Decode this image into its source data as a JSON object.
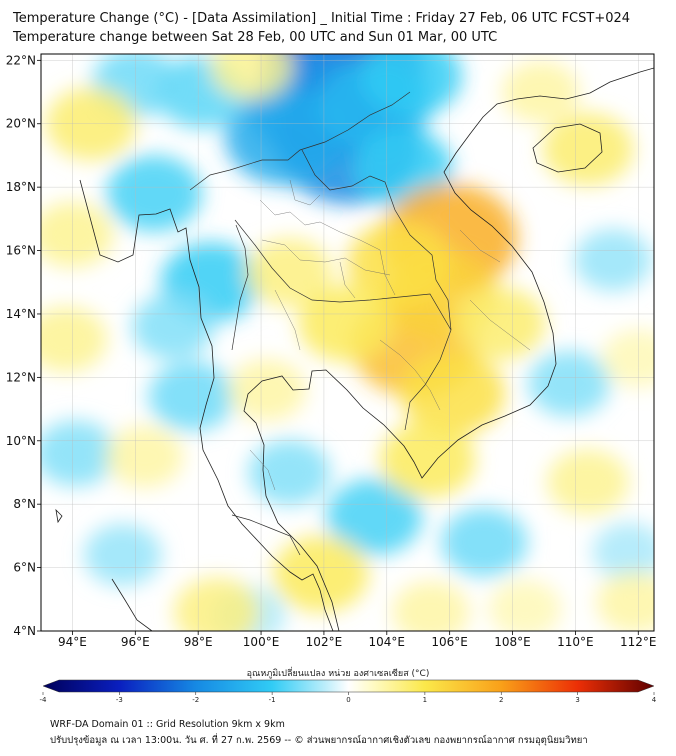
{
  "title": {
    "line1": "Temperature Change (°C) - [Data Assimilation] _ Initial Time : Friday 27 Feb, 06 UTC FCST+024",
    "line2": "Temperature change between Sat 28 Feb, 00 UTC and Sun 01 Mar, 00 UTC"
  },
  "map": {
    "lon_range": [
      93,
      112.5
    ],
    "lat_range": [
      4,
      22.2
    ],
    "x_ticks": [
      {
        "value": 94,
        "label": "94°E"
      },
      {
        "value": 96,
        "label": "96°E"
      },
      {
        "value": 98,
        "label": "98°E"
      },
      {
        "value": 100,
        "label": "100°E"
      },
      {
        "value": 102,
        "label": "102°E"
      },
      {
        "value": 104,
        "label": "104°E"
      },
      {
        "value": 106,
        "label": "106°E"
      },
      {
        "value": 108,
        "label": "108°E"
      },
      {
        "value": 110,
        "label": "110°E"
      },
      {
        "value": 112,
        "label": "112°E"
      }
    ],
    "y_ticks": [
      {
        "value": 22,
        "label": "22°N"
      },
      {
        "value": 20,
        "label": "20°N"
      },
      {
        "value": 18,
        "label": "18°N"
      },
      {
        "value": 16,
        "label": "16°N"
      },
      {
        "value": 14,
        "label": "14°N"
      },
      {
        "value": 12,
        "label": "12°N"
      },
      {
        "value": 10,
        "label": "10°N"
      },
      {
        "value": 8,
        "label": "8°N"
      },
      {
        "value": 6,
        "label": "6°N"
      },
      {
        "value": 4,
        "label": "4°N"
      }
    ],
    "field": [
      {
        "lon": 102.6,
        "lat": 21.7,
        "value": -2.4
      },
      {
        "lon": 101.8,
        "lat": 20.5,
        "value": -1.8
      },
      {
        "lon": 102.8,
        "lat": 19.3,
        "value": -2.0
      },
      {
        "lon": 100.8,
        "lat": 19.6,
        "value": -1.5
      },
      {
        "lon": 103.6,
        "lat": 20.6,
        "value": -1.3
      },
      {
        "lon": 104.8,
        "lat": 21.5,
        "value": -1.0
      },
      {
        "lon": 104.5,
        "lat": 18.6,
        "value": -1.0
      },
      {
        "lon": 98.4,
        "lat": 15.0,
        "value": -1.0
      },
      {
        "lon": 96.6,
        "lat": 17.8,
        "value": -0.9
      },
      {
        "lon": 98.1,
        "lat": 21.0,
        "value": -0.8
      },
      {
        "lon": 96.0,
        "lat": 21.3,
        "value": -0.7
      },
      {
        "lon": 97.8,
        "lat": 11.4,
        "value": -0.7
      },
      {
        "lon": 97.2,
        "lat": 13.6,
        "value": -0.6
      },
      {
        "lon": 100.9,
        "lat": 9.0,
        "value": -0.6
      },
      {
        "lon": 103.6,
        "lat": 7.6,
        "value": -0.9
      },
      {
        "lon": 107.1,
        "lat": 6.8,
        "value": -0.7
      },
      {
        "lon": 109.8,
        "lat": 11.8,
        "value": -0.6
      },
      {
        "lon": 111.2,
        "lat": 15.7,
        "value": -0.5
      },
      {
        "lon": 94.1,
        "lat": 9.6,
        "value": -0.6
      },
      {
        "lon": 95.6,
        "lat": 6.4,
        "value": -0.5
      },
      {
        "lon": 99.6,
        "lat": 4.5,
        "value": -0.4
      },
      {
        "lon": 111.7,
        "lat": 6.5,
        "value": -0.4
      },
      {
        "lon": 104.9,
        "lat": 13.0,
        "value": 1.6
      },
      {
        "lon": 106.0,
        "lat": 16.4,
        "value": 1.8
      },
      {
        "lon": 105.7,
        "lat": 14.6,
        "value": 1.3
      },
      {
        "lon": 104.4,
        "lat": 15.6,
        "value": 1.1
      },
      {
        "lon": 106.1,
        "lat": 11.5,
        "value": 1.1
      },
      {
        "lon": 100.9,
        "lat": 15.3,
        "value": 0.7
      },
      {
        "lon": 105.3,
        "lat": 9.4,
        "value": 0.9
      },
      {
        "lon": 107.6,
        "lat": 13.7,
        "value": 0.8
      },
      {
        "lon": 102.7,
        "lat": 13.7,
        "value": 0.9
      },
      {
        "lon": 100.2,
        "lat": 11.6,
        "value": 0.5
      },
      {
        "lon": 94.6,
        "lat": 20.0,
        "value": 0.8
      },
      {
        "lon": 94.0,
        "lat": 16.5,
        "value": 0.6
      },
      {
        "lon": 110.4,
        "lat": 19.2,
        "value": 0.8
      },
      {
        "lon": 108.9,
        "lat": 21.0,
        "value": 0.5
      },
      {
        "lon": 99.7,
        "lat": 21.8,
        "value": 0.6
      },
      {
        "lon": 93.8,
        "lat": 13.2,
        "value": 0.6
      },
      {
        "lon": 96.3,
        "lat": 9.5,
        "value": 0.5
      },
      {
        "lon": 101.9,
        "lat": 5.8,
        "value": 0.9
      },
      {
        "lon": 98.6,
        "lat": 4.6,
        "value": 0.7
      },
      {
        "lon": 110.4,
        "lat": 8.7,
        "value": 0.6
      },
      {
        "lon": 111.9,
        "lat": 4.9,
        "value": 0.5
      },
      {
        "lon": 108.4,
        "lat": 4.7,
        "value": 0.4
      },
      {
        "lon": 105.4,
        "lat": 4.6,
        "value": 0.5
      },
      {
        "lon": 112.0,
        "lat": 12.6,
        "value": 0.4
      }
    ]
  },
  "colorbar": {
    "label": "อุณหภูมิเปลี่ยนแปลง หน่วย องศาเซลเซียส (°C)",
    "min": -4,
    "max": 4,
    "ticks": [
      {
        "value": -4,
        "label": "-4"
      },
      {
        "value": -3,
        "label": "-3"
      },
      {
        "value": -2,
        "label": "-2"
      },
      {
        "value": -1,
        "label": "-1"
      },
      {
        "value": 0,
        "label": "0"
      },
      {
        "value": 1,
        "label": "1"
      },
      {
        "value": 2,
        "label": "2"
      },
      {
        "value": 3,
        "label": "3"
      },
      {
        "value": 4,
        "label": "4"
      }
    ],
    "color_stops": [
      {
        "value": -4,
        "color": "#00005a"
      },
      {
        "value": -3,
        "color": "#0a1fbf"
      },
      {
        "value": -2,
        "color": "#1689e3"
      },
      {
        "value": -1,
        "color": "#31ccf5"
      },
      {
        "value": -0.3,
        "color": "#bdeefb"
      },
      {
        "value": 0,
        "color": "#ffffff"
      },
      {
        "value": 0.3,
        "color": "#fffbc8"
      },
      {
        "value": 1,
        "color": "#fbe84a"
      },
      {
        "value": 2,
        "color": "#f9a019"
      },
      {
        "value": 3,
        "color": "#ec2f06"
      },
      {
        "value": 4,
        "color": "#5e0000"
      }
    ]
  },
  "footer": {
    "line1": "WRF-DA Domain 01 :: Grid Resolution 9km x 9km",
    "line2": "ปรับปรุงข้อมูล ณ เวลา 13:00น. วัน ศ. ที่ 27 ก.พ. 2569 -- © ส่วนพยากรณ์อากาศเชิงตัวเลข กองพยากรณ์อากาศ กรมอุตุนิยมวิทยา"
  }
}
